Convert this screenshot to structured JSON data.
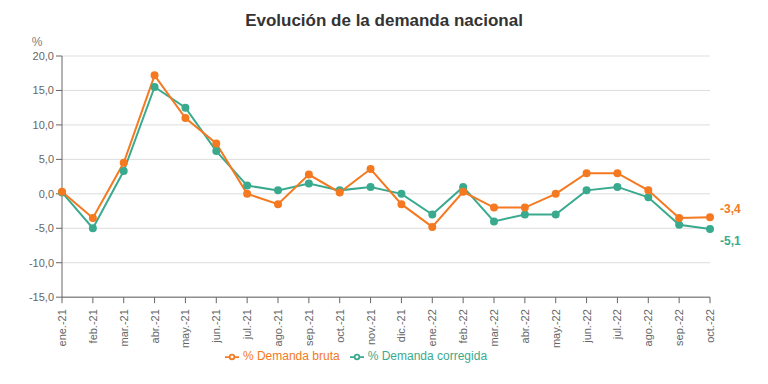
{
  "chart_data": {
    "type": "line",
    "title": "Evolución de la demanda nacional",
    "ylabel": "%",
    "categories": [
      "ene.-21",
      "feb.-21",
      "mar.-21",
      "abr.-21",
      "may.-21",
      "jun.-21",
      "jul.-21",
      "ago.-21",
      "sep.-21",
      "oct.-21",
      "nov.-21",
      "dic.-21",
      "ene.-22",
      "feb.-22",
      "mar.-22",
      "abr.-22",
      "may.-22",
      "jun.-22",
      "jul.-22",
      "ago.-22",
      "sep.-22",
      "oct.-22"
    ],
    "series": [
      {
        "name": "% Demanda corregida",
        "color": "#3aaa8f",
        "values": [
          0.2,
          -5.0,
          3.3,
          15.5,
          12.5,
          6.2,
          1.2,
          0.5,
          1.5,
          0.5,
          1.0,
          0.0,
          -3.0,
          1.0,
          -4.0,
          -3.0,
          -3.0,
          0.5,
          1.0,
          -0.5,
          -4.5,
          -5.1
        ]
      },
      {
        "name": "% Demanda bruta",
        "color": "#f47920",
        "values": [
          0.3,
          -3.5,
          4.5,
          17.2,
          11.0,
          7.3,
          0.0,
          -1.5,
          2.8,
          0.2,
          3.6,
          -1.5,
          -4.8,
          0.3,
          -2.0,
          -2.0,
          0.0,
          3.0,
          3.0,
          0.5,
          -3.5,
          -3.4
        ]
      }
    ],
    "ylim": [
      -15.0,
      20.0
    ],
    "yticks": [
      {
        "value": -15,
        "label": "-15,0"
      },
      {
        "value": -10,
        "label": "-10,0"
      },
      {
        "value": -5,
        "label": "-5,0"
      },
      {
        "value": 0,
        "label": "0,0"
      },
      {
        "value": 5,
        "label": "5,0"
      },
      {
        "value": 10,
        "label": "10,0"
      },
      {
        "value": 15,
        "label": "15,0"
      },
      {
        "value": 20,
        "label": "20,0"
      }
    ],
    "annotations": [
      {
        "text": "-3,4",
        "series": "% Demanda bruta"
      },
      {
        "text": "-5,1",
        "series": "% Demanda corregida"
      }
    ],
    "grid": true,
    "legend": "bottom",
    "marker": "circle"
  }
}
